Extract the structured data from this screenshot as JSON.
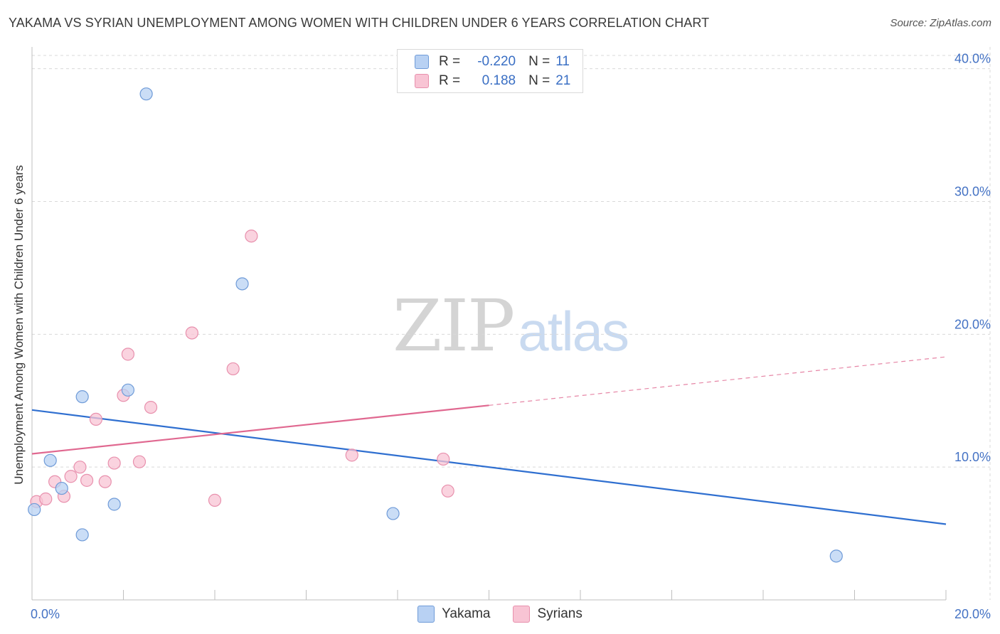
{
  "header": {
    "title": "YAKAMA VS SYRIAN UNEMPLOYMENT AMONG WOMEN WITH CHILDREN UNDER 6 YEARS CORRELATION CHART",
    "source": "Source: ZipAtlas.com"
  },
  "watermark": {
    "zip": "ZIP",
    "atlas": "atlas"
  },
  "legend": {
    "rows": [
      {
        "r_label": "R =",
        "r_value": "-0.220",
        "n_label": "N =",
        "n_value": "11"
      },
      {
        "r_label": "R =",
        "r_value": "0.188",
        "n_label": "N =",
        "n_value": "21"
      }
    ]
  },
  "bottom_legend": {
    "yakama": "Yakama",
    "syrians": "Syrians"
  },
  "colors": {
    "yakama_fill": "#b8d1f3",
    "yakama_stroke": "#6f9bd8",
    "yakama_line": "#2f6fd0",
    "syrians_fill": "#f8c4d4",
    "syrians_stroke": "#e890ad",
    "syrians_line": "#e06890",
    "grid": "#d9d9d9",
    "axis_text": "#4472c4"
  },
  "chart_data": {
    "type": "scatter",
    "xlabel": "",
    "ylabel": "Unemployment Among Women with Children Under 6 years",
    "xlim": [
      0,
      20
    ],
    "ylim": [
      0,
      41
    ],
    "x_tick_labels": [
      "0.0%",
      "20.0%"
    ],
    "y_ticks": [
      10,
      20,
      30,
      40
    ],
    "y_tick_labels": [
      "10.0%",
      "20.0%",
      "30.0%",
      "40.0%"
    ],
    "grid": true,
    "legend_position": "top-center",
    "series": [
      {
        "name": "Yakama",
        "points": [
          [
            0.05,
            6.8
          ],
          [
            0.4,
            10.5
          ],
          [
            0.65,
            8.4
          ],
          [
            1.1,
            15.3
          ],
          [
            1.1,
            4.9
          ],
          [
            1.8,
            7.2
          ],
          [
            2.1,
            15.8
          ],
          [
            2.5,
            38.1
          ],
          [
            4.6,
            23.8
          ],
          [
            7.9,
            6.5
          ],
          [
            17.6,
            3.3
          ]
        ],
        "trend": {
          "x": [
            0,
            20
          ],
          "y": [
            14.3,
            5.7
          ],
          "solid_until": 20
        }
      },
      {
        "name": "Syrians",
        "points": [
          [
            0.1,
            7.4
          ],
          [
            0.3,
            7.6
          ],
          [
            0.5,
            8.9
          ],
          [
            0.7,
            7.8
          ],
          [
            0.85,
            9.3
          ],
          [
            1.05,
            10.0
          ],
          [
            1.2,
            9.0
          ],
          [
            1.4,
            13.6
          ],
          [
            1.6,
            8.9
          ],
          [
            1.8,
            10.3
          ],
          [
            2.0,
            15.4
          ],
          [
            2.1,
            18.5
          ],
          [
            2.35,
            10.4
          ],
          [
            2.6,
            14.5
          ],
          [
            3.5,
            20.1
          ],
          [
            4.0,
            7.5
          ],
          [
            4.4,
            17.4
          ],
          [
            4.8,
            27.4
          ],
          [
            7.0,
            10.9
          ],
          [
            9.0,
            10.6
          ],
          [
            9.1,
            8.2
          ]
        ],
        "trend": {
          "x": [
            0,
            20
          ],
          "y": [
            11.0,
            18.3
          ],
          "solid_until": 10
        }
      }
    ]
  }
}
